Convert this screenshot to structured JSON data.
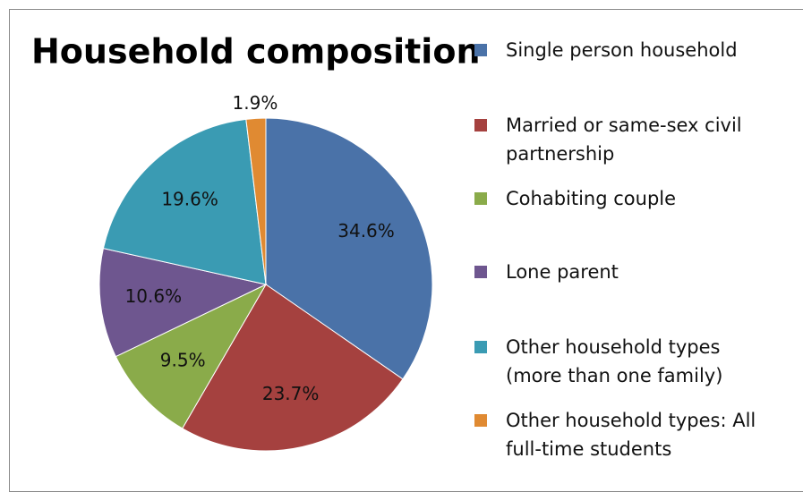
{
  "chart_data": {
    "type": "pie",
    "title": "Household composition",
    "categories": [
      "Single person household",
      "Married or same-sex civil partnership",
      "Cohabiting couple",
      "Lone parent",
      "Other household types (more than one family)",
      "Other household types: All full-time students"
    ],
    "values": [
      34.6,
      23.7,
      9.5,
      10.6,
      19.6,
      1.9
    ],
    "value_labels": [
      "34.6%",
      "23.7%",
      "9.5%",
      "10.6%",
      "19.6%",
      "1.9%"
    ],
    "colors": [
      "#4a72a8",
      "#a5413f",
      "#8aab4a",
      "#6e568f",
      "#3a9bb3",
      "#e08a32"
    ],
    "legend": "right"
  }
}
